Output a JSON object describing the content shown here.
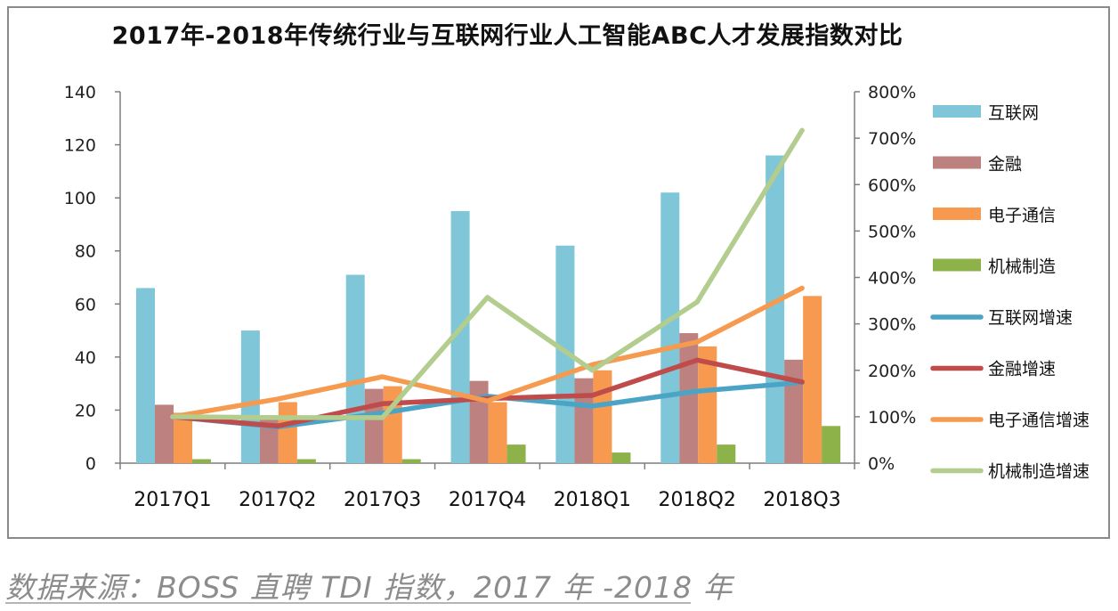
{
  "chart_data": {
    "type": "bar",
    "title": "2017年-2018年传统行业与互联网行业人工智能ABC人才发展指数对比",
    "categories": [
      "2017Q1",
      "2017Q2",
      "2017Q3",
      "2017Q4",
      "2018Q1",
      "2018Q2",
      "2018Q3"
    ],
    "ylim": [
      0,
      140
    ],
    "yticks": [
      "0",
      "20",
      "40",
      "60",
      "80",
      "100",
      "120",
      "140"
    ],
    "y2lim": [
      0,
      800
    ],
    "y2ticks": [
      "0%",
      "100%",
      "200%",
      "300%",
      "400%",
      "500%",
      "600%",
      "700%",
      "800%"
    ],
    "bar_series": [
      {
        "name": "互联网",
        "color": "#7fc6d8",
        "values": [
          66,
          50,
          71,
          95,
          82,
          102,
          116
        ]
      },
      {
        "name": "金融",
        "color": "#bd817f",
        "values": [
          22,
          18,
          28,
          31,
          32,
          49,
          39
        ]
      },
      {
        "name": "电子通信",
        "color": "#f79a4f",
        "values": [
          19,
          23,
          29,
          23,
          35,
          44,
          63
        ]
      },
      {
        "name": "机械制造",
        "color": "#8db24a",
        "values": [
          1.5,
          1.5,
          1.5,
          7,
          4,
          7,
          14
        ]
      }
    ],
    "line_series": [
      {
        "name": "互联网增速",
        "color": "#4aa4c6",
        "values": [
          100,
          78,
          108,
          144,
          123,
          155,
          174
        ]
      },
      {
        "name": "金融增速",
        "color": "#bf4b4b",
        "values": [
          100,
          80,
          128,
          139,
          146,
          222,
          175
        ]
      },
      {
        "name": "电子通信增速",
        "color": "#f59a4e",
        "values": [
          100,
          138,
          186,
          134,
          212,
          261,
          377
        ]
      },
      {
        "name": "机械制造增速",
        "color": "#b2cd8e",
        "values": [
          100,
          98,
          98,
          357,
          200,
          347,
          717
        ]
      }
    ]
  },
  "footer": {
    "source": "数据来源：BOSS 直聘 TDI 指数，2017 年 -2018 年"
  }
}
